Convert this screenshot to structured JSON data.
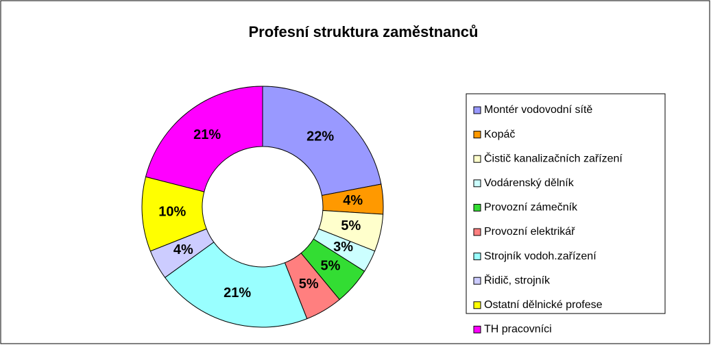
{
  "chart_data": {
    "type": "donut",
    "title": "Profesní struktura zaměstnanců",
    "categories": [
      "Montér vodovodní sítě",
      "Kopáč",
      "Čistič kanalizačních zařízení",
      "Vodárenský dělník",
      "Provozní zámečník",
      "Provozní elektrikář",
      "Strojník vodoh.zařízení",
      "Řidič, strojník",
      "Ostatní dělnické profese",
      "TH pracovníci"
    ],
    "values": [
      22,
      4,
      5,
      3,
      5,
      5,
      21,
      4,
      10,
      21
    ],
    "value_labels": [
      "22%",
      "4%",
      "5%",
      "3%",
      "5%",
      "5%",
      "21%",
      "4%",
      "10%",
      "21%"
    ],
    "colors": [
      "#9999ff",
      "#ff9900",
      "#ffffcc",
      "#ccffff",
      "#33dd33",
      "#ff7f7f",
      "#99ffff",
      "#ccccff",
      "#ffff00",
      "#ff00ff"
    ],
    "legend": "right"
  }
}
